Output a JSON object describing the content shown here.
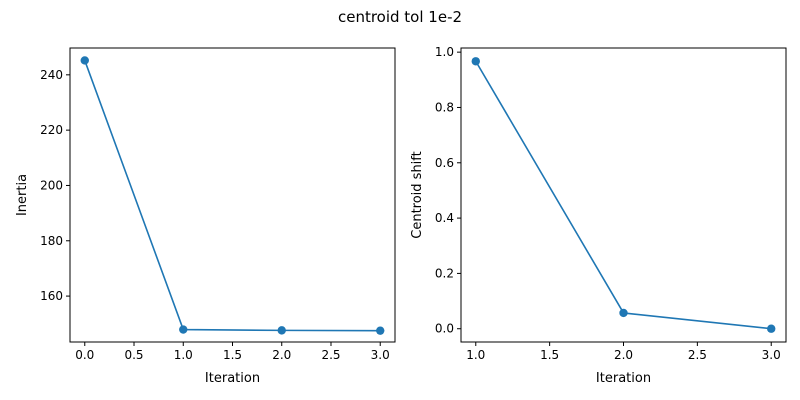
{
  "figure": {
    "title": "centroid tol 1e-2"
  },
  "chart_data": [
    {
      "type": "line",
      "title": "",
      "xlabel": "Iteration",
      "ylabel": "Inertia",
      "xlim": [
        -0.15,
        3.15
      ],
      "ylim": [
        143.4,
        249.7
      ],
      "xticks": [
        0.0,
        0.5,
        1.0,
        1.5,
        2.0,
        2.5,
        3.0
      ],
      "xtick_labels": [
        "0.0",
        "0.5",
        "1.0",
        "1.5",
        "2.0",
        "2.5",
        "3.0"
      ],
      "yticks": [
        160,
        180,
        200,
        220,
        240
      ],
      "ytick_labels": [
        "160",
        "180",
        "200",
        "220",
        "240"
      ],
      "grid": false,
      "color": "#1f77b4",
      "marker": "circle",
      "x": [
        0,
        1,
        2,
        3
      ],
      "y": [
        245.2,
        147.9,
        147.6,
        147.5
      ]
    },
    {
      "type": "line",
      "title": "",
      "xlabel": "Iteration",
      "ylabel": "Centroid shift",
      "xlim": [
        0.9,
        3.1
      ],
      "ylim": [
        -0.048,
        1.015
      ],
      "xticks": [
        1.0,
        1.5,
        2.0,
        2.5,
        3.0
      ],
      "xtick_labels": [
        "1.0",
        "1.5",
        "2.0",
        "2.5",
        "3.0"
      ],
      "yticks": [
        0.0,
        0.2,
        0.4,
        0.6,
        0.8,
        1.0
      ],
      "ytick_labels": [
        "0.0",
        "0.2",
        "0.4",
        "0.6",
        "0.8",
        "1.0"
      ],
      "grid": false,
      "color": "#1f77b4",
      "marker": "circle",
      "x": [
        1,
        2,
        3
      ],
      "y": [
        0.967,
        0.057,
        0.0
      ]
    }
  ]
}
